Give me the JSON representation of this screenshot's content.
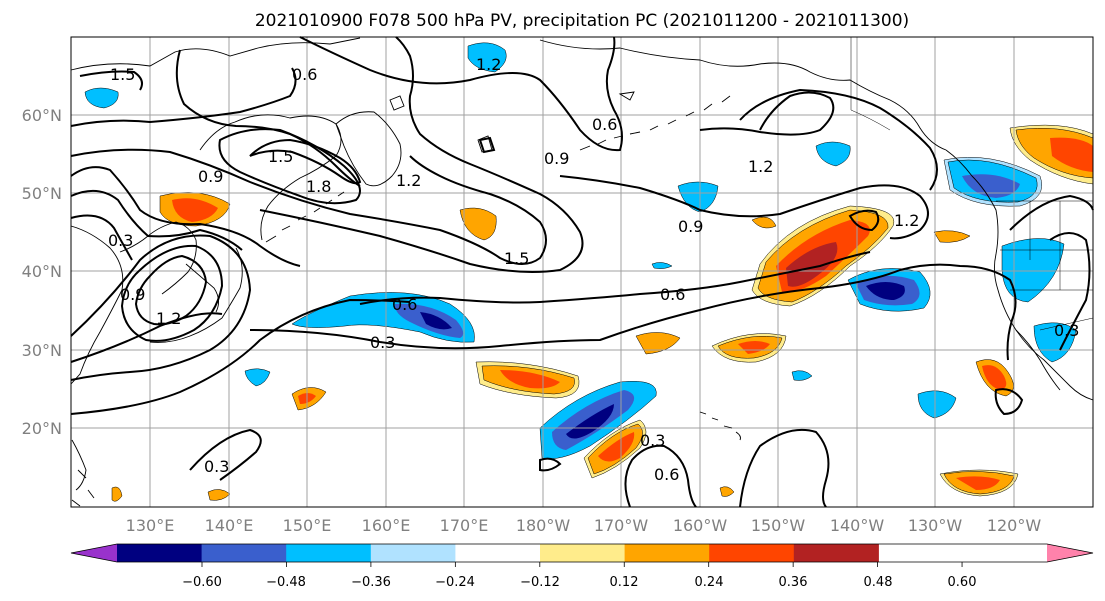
{
  "title": "2021010900 F078 500 hPa PV, precipitation PC (2021011200 - 2021011300)",
  "map": {
    "lat_labels": [
      "60°N",
      "50°N",
      "40°N",
      "30°N",
      "20°N"
    ],
    "lon_labels": [
      "130°E",
      "140°E",
      "150°E",
      "160°E",
      "170°E",
      "180°W",
      "170°W",
      "160°W",
      "150°W",
      "140°W",
      "130°W",
      "120°W"
    ]
  },
  "pv_contour_labels": [
    "1.5",
    "0.6",
    "1.2",
    "0.6",
    "1.5",
    "1.8",
    "0.9",
    "1.2",
    "0.9",
    "1.2",
    "0.9",
    "1.2",
    "1.5",
    "0.6",
    "0.6",
    "0.3",
    "0.3",
    "0.6",
    "0.3",
    "0.9",
    "0.3",
    "0.3",
    "1.2"
  ],
  "colorbar": {
    "tick_labels": [
      "−0.60",
      "−0.48",
      "−0.36",
      "−0.24",
      "−0.12",
      "0.12",
      "0.24",
      "0.36",
      "0.48",
      "0.60"
    ],
    "colors": [
      "#9932cc",
      "#000080",
      "#3a5fcd",
      "#00bfff",
      "#b0e2ff",
      "#ffffff",
      "#ffec8b",
      "#ffa500",
      "#ff4500",
      "#b22222",
      "#ff82ab"
    ]
  }
}
